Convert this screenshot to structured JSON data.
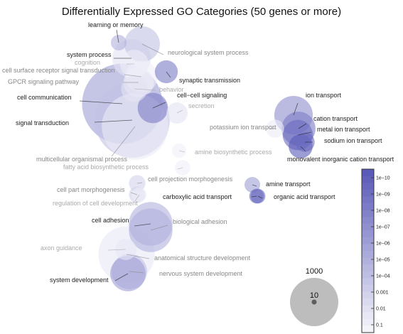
{
  "chart_data": {
    "type": "scatter",
    "title": "Differentially Expressed GO Categories (50 genes or more)",
    "colorbar": {
      "ticks": [
        "1e−10",
        "1e−09",
        "1e−08",
        "1e−07",
        "1e−06",
        "1e−05",
        "1e−04",
        "0.001",
        "0.01",
        "0.1"
      ],
      "color_high": "#5a5ab8",
      "color_low": "#f4f4fb"
    },
    "size_legend": {
      "large": "1000",
      "small": "10",
      "color": "#bdbdbd"
    },
    "points": [
      {
        "label": "learning or memory",
        "genes": 70,
        "pvalue": 1e-05,
        "label_color": "#222222"
      },
      {
        "label": "neurological system process",
        "genes": 500,
        "pvalue": 0.0001,
        "label_color": "#888888"
      },
      {
        "label": "system process",
        "genes": 600,
        "pvalue": 0.01,
        "label_color": "#222222"
      },
      {
        "label": "cognition",
        "genes": 300,
        "pvalue": 0.05,
        "label_color": "#aaaaaa"
      },
      {
        "label": "synaptic transmission",
        "genes": 180,
        "pvalue": 1e-08,
        "label_color": "#222222"
      },
      {
        "label": "cell surface receptor signal transduction",
        "genes": 400,
        "pvalue": 0.05,
        "label_color": "#888888"
      },
      {
        "label": "GPCR signaling pathway",
        "genes": 350,
        "pvalue": 0.05,
        "label_color": "#888888"
      },
      {
        "label": "behavior",
        "genes": 250,
        "pvalue": 0.01,
        "label_color": "#aaaaaa"
      },
      {
        "label": "cell communication",
        "genes": 3000,
        "pvalue": 1e-06,
        "label_color": "#222222"
      },
      {
        "label": "cell−cell signaling",
        "genes": 350,
        "pvalue": 1e-08,
        "label_color": "#222222"
      },
      {
        "label": "signal transduction",
        "genes": 2600,
        "pvalue": 0.0001,
        "label_color": "#222222"
      },
      {
        "label": "secretion",
        "genes": 150,
        "pvalue": 0.01,
        "label_color": "#aaaaaa"
      },
      {
        "label": "multicellular organismal process",
        "genes": 2000,
        "pvalue": 0.03,
        "label_color": "#888888"
      },
      {
        "label": "ion transport",
        "genes": 600,
        "pvalue": 1e-07,
        "label_color": "#222222"
      },
      {
        "label": "potassium ion transport",
        "genes": 100,
        "pvalue": 0.03,
        "label_color": "#888888"
      },
      {
        "label": "cation transport",
        "genes": 450,
        "pvalue": 1e-08,
        "label_color": "#222222"
      },
      {
        "label": "metal ion transport",
        "genes": 350,
        "pvalue": 1e-09,
        "label_color": "#222222"
      },
      {
        "label": "sodium ion transport",
        "genes": 120,
        "pvalue": 1e-09,
        "label_color": "#222222"
      },
      {
        "label": "monovalent inorganic cation transport",
        "genes": 200,
        "pvalue": 1e-10,
        "label_color": "#222222"
      },
      {
        "label": "amine biosynthetic process",
        "genes": 55,
        "pvalue": 0.05,
        "label_color": "#aaaaaa"
      },
      {
        "label": "fatty acid biosynthetic process",
        "genes": 65,
        "pvalue": 0.05,
        "label_color": "#aaaaaa"
      },
      {
        "label": "cell projection morphogenesis",
        "genes": 80,
        "pvalue": 0.001,
        "label_color": "#888888"
      },
      {
        "label": "cell part morphogenesis",
        "genes": 80,
        "pvalue": 0.001,
        "label_color": "#888888"
      },
      {
        "label": "regulation of cell development",
        "genes": 60,
        "pvalue": 0.05,
        "label_color": "#aaaaaa"
      },
      {
        "label": "amine transport",
        "genes": 70,
        "pvalue": 1e-06,
        "label_color": "#222222"
      },
      {
        "label": "carboxylic acid transport",
        "genes": 60,
        "pvalue": 1e-09,
        "label_color": "#222222"
      },
      {
        "label": "organic acid transport",
        "genes": 60,
        "pvalue": 1e-09,
        "label_color": "#222222"
      },
      {
        "label": "cell adhesion",
        "genes": 800,
        "pvalue": 1e-05,
        "label_color": "#222222"
      },
      {
        "label": "biological adhesion",
        "genes": 800,
        "pvalue": 1e-05,
        "label_color": "#888888"
      },
      {
        "label": "axon guidance",
        "genes": 150,
        "pvalue": 0.02,
        "label_color": "#aaaaaa"
      },
      {
        "label": "anatomical structure development",
        "genes": 1400,
        "pvalue": 0.02,
        "label_color": "#888888"
      },
      {
        "label": "nervous system development",
        "genes": 500,
        "pvalue": 0.0001,
        "label_color": "#888888"
      },
      {
        "label": "system development",
        "genes": 500,
        "pvalue": 1e-06,
        "label_color": "#222222"
      }
    ]
  }
}
